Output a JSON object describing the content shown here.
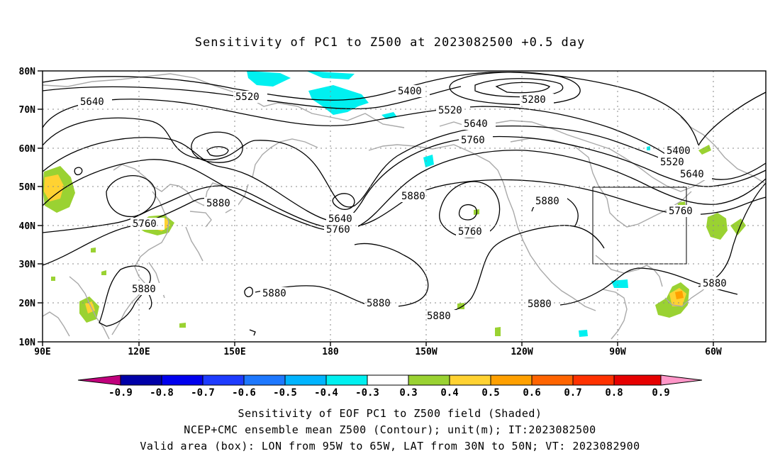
{
  "title": "Sensitivity of PC1 to Z500 at 2023082500 +0.5 day",
  "axes": {
    "lat_labels": [
      "80N",
      "70N",
      "60N",
      "50N",
      "40N",
      "30N",
      "20N",
      "10N"
    ],
    "lon_labels": [
      "90E",
      "120E",
      "150E",
      "180",
      "150W",
      "120W",
      "90W",
      "60W"
    ]
  },
  "contour_labels": [
    {
      "text": "5640"
    },
    {
      "text": "5520"
    },
    {
      "text": "5400"
    },
    {
      "text": "5280"
    },
    {
      "text": "5520"
    },
    {
      "text": "5640"
    },
    {
      "text": "5760"
    },
    {
      "text": "5400"
    },
    {
      "text": "5520"
    },
    {
      "text": "5640"
    },
    {
      "text": "5760"
    },
    {
      "text": "5880"
    },
    {
      "text": "5760"
    },
    {
      "text": "5640"
    },
    {
      "text": "5760"
    },
    {
      "text": "5880"
    },
    {
      "text": "5760"
    },
    {
      "text": "5880"
    },
    {
      "text": "5880"
    },
    {
      "text": "5880"
    },
    {
      "text": "5880"
    },
    {
      "text": "5880"
    },
    {
      "text": "5880"
    },
    {
      "text": "5880"
    }
  ],
  "colorbar": {
    "colors": [
      "#c0007c",
      "#0000a8",
      "#0000ee",
      "#1e3cff",
      "#1e78ff",
      "#00b4ff",
      "#00f0f0",
      "#ffffff",
      "#9ad232",
      "#ffd232",
      "#ffa000",
      "#ff6400",
      "#ff3200",
      "#e60000",
      "#ff96c8"
    ],
    "labels": [
      "-0.9",
      "-0.8",
      "-0.7",
      "-0.6",
      "-0.5",
      "-0.4",
      "-0.3",
      "0.3",
      "0.4",
      "0.5",
      "0.6",
      "0.7",
      "0.8",
      "0.9"
    ]
  },
  "valid_box": {
    "lon_west": "95W",
    "lon_east": "65W",
    "lat_south": "30N",
    "lat_north": "50N"
  },
  "captions": [
    "Sensitivity of EOF PC1 to Z500 field (Shaded)",
    "NCEP+CMC ensemble mean Z500 (Contour); unit(m); IT:2023082500",
    "Valid area (box): LON from 95W to 65W, LAT from 30N to 50N; VT: 2023082900"
  ]
}
